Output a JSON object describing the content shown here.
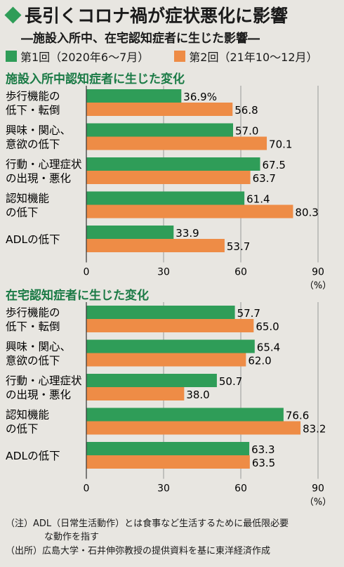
{
  "header": {
    "title": "長引くコロナ禍が症状悪化に影響",
    "subtitle": "―施設入所中、在宅認知症者に生じた影響―"
  },
  "legend": [
    {
      "label": "第1回（2020年6〜7月）",
      "color": "#2f9d58"
    },
    {
      "label": "第2回（21年10〜12月）",
      "color": "#ee8c46"
    }
  ],
  "colors": {
    "series1": "#2f9d58",
    "series2": "#ee8c46",
    "accent": "#1a7a45"
  },
  "chart_data": [
    {
      "type": "bar",
      "orientation": "horizontal",
      "title": "施設入所中認知症者に生じた変化",
      "categories": [
        [
          "歩行機能の",
          "低下・転倒"
        ],
        [
          "興味・関心、",
          "意欲の低下"
        ],
        [
          "行動・心理症状",
          "の出現・悪化"
        ],
        [
          "認知機能",
          "の低下"
        ],
        [
          "ADLの低下"
        ]
      ],
      "series": [
        {
          "name": "第1回（2020年6〜7月）",
          "values": [
            36.9,
            57.0,
            67.5,
            61.4,
            33.9
          ],
          "labels": [
            "36.9%",
            "57.0",
            "67.5",
            "61.4",
            "33.9"
          ]
        },
        {
          "name": "第2回（21年10〜12月）",
          "values": [
            56.8,
            70.1,
            63.7,
            80.3,
            53.7
          ],
          "labels": [
            "56.8",
            "70.1",
            "63.7",
            "80.3",
            "53.7"
          ]
        }
      ],
      "xlim": [
        0,
        90
      ],
      "xticks": [
        "0",
        "30",
        "60",
        "90"
      ],
      "xunit": "（%）"
    },
    {
      "type": "bar",
      "orientation": "horizontal",
      "title": "在宅認知症者に生じた変化",
      "categories": [
        [
          "歩行機能の",
          "低下・転倒"
        ],
        [
          "興味・関心、",
          "意欲の低下"
        ],
        [
          "行動・心理症状",
          "の出現・悪化"
        ],
        [
          "認知機能",
          "の低下"
        ],
        [
          "ADLの低下"
        ]
      ],
      "series": [
        {
          "name": "第1回（2020年6〜7月）",
          "values": [
            57.7,
            65.4,
            50.7,
            76.6,
            63.3
          ],
          "labels": [
            "57.7",
            "65.4",
            "50.7",
            "76.6",
            "63.3"
          ]
        },
        {
          "name": "第2回（21年10〜12月）",
          "values": [
            65.0,
            62.0,
            38.0,
            83.2,
            63.5
          ],
          "labels": [
            "65.0",
            "62.0",
            "38.0",
            "83.2",
            "63.5"
          ]
        }
      ],
      "xlim": [
        0,
        90
      ],
      "xticks": [
        "0",
        "30",
        "60",
        "90"
      ],
      "xunit": "（%）"
    }
  ],
  "notes": {
    "note1_line1": "（注）ADL（日常生活動作）とは食事など生活するために最低限必要",
    "note1_line2": "な動作を指す",
    "source": "（出所）広島大学・石井伸弥教授の提供資料を基に東洋経済作成"
  }
}
